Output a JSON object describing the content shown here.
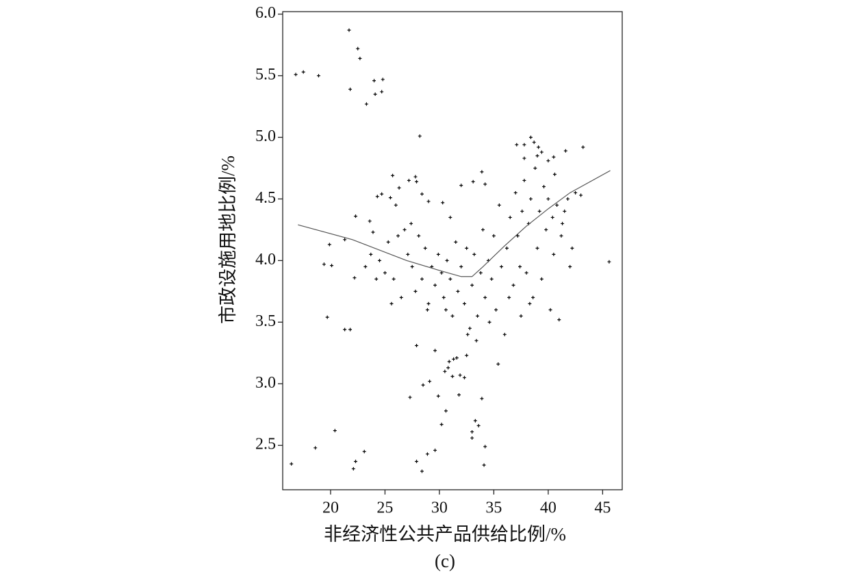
{
  "chart_data": {
    "type": "scatter",
    "x_label": "非经济性公共产品供给比例/%",
    "y_label": "市政设施用地比例/%",
    "caption": "(c)",
    "color": "#000000",
    "xlim": [
      15.6,
      46.8
    ],
    "ylim": [
      2.14,
      6.02
    ],
    "xticks": [
      20,
      25,
      30,
      35,
      40,
      45
    ],
    "yticks": [
      2.5,
      {
        "value": 3,
        "label": "3.0"
      },
      3.5,
      {
        "value": 4,
        "label": "4.0"
      },
      4.5,
      {
        "value": 5,
        "label": "5.0"
      },
      5.5,
      {
        "value": 6,
        "label": "6.0"
      }
    ],
    "points": {
      "x": [
        16.8,
        17.5,
        18.9,
        21.7,
        22.5,
        22.7,
        21.8,
        24.0,
        24.8,
        24.1,
        24.7,
        23.3,
        28.2,
        16.4,
        18.6,
        20.4,
        23.1,
        22.3,
        22.1,
        27.9,
        28.4,
        28.9,
        29.6,
        34.1,
        34.2,
        33.0,
        33.6,
        33.3,
        33.0,
        33.9,
        30.2,
        30.6,
        29.9,
        29.1,
        28.5,
        27.3,
        27.9,
        29.6,
        30.9,
        31.3,
        31.6,
        32.5,
        30.8,
        31.2,
        31.9,
        32.3,
        31.8,
        30.5,
        19.7,
        21.3,
        21.8,
        19.4,
        20.1,
        19.9,
        21.3,
        22.2,
        22.3,
        23.9,
        23.6,
        24.3,
        24.7,
        25.7,
        26.3,
        27.2,
        27.8,
        27.9,
        25.5,
        28.4,
        29.0,
        30.3,
        32.0,
        33.9,
        34.2,
        33.1,
        37.8,
        37.1,
        38.4,
        38.7,
        39.1,
        39.4,
        40.0,
        40.5,
        41.6,
        43.2,
        45.6,
        37.8,
        24.5,
        25.0,
        25.3,
        25.8,
        26.2,
        26.5,
        26.8,
        27.1,
        27.5,
        27.8,
        28.1,
        28.4,
        28.7,
        29.0,
        29.3,
        29.6,
        29.9,
        25.6,
        24.2,
        23.7,
        23.2,
        26.0,
        27.4,
        28.9,
        30.2,
        30.4,
        30.7,
        31.0,
        31.2,
        31.5,
        31.7,
        32.0,
        32.3,
        32.5,
        32.8,
        33.0,
        33.2,
        33.5,
        33.8,
        34.0,
        34.2,
        34.5,
        34.8,
        35.0,
        35.2,
        35.5,
        35.7,
        31.0,
        32.6,
        30.6,
        33.4,
        34.6,
        35.4,
        36.0,
        36.2,
        36.5,
        36.8,
        37.0,
        37.2,
        37.4,
        37.6,
        37.8,
        38.0,
        38.2,
        38.4,
        38.6,
        38.8,
        39.0,
        39.2,
        39.4,
        39.6,
        39.8,
        40.0,
        40.2,
        40.4,
        40.6,
        40.8,
        41.0,
        41.2,
        41.5,
        41.8,
        42.2,
        42.5,
        43.0,
        42.0,
        36.4,
        37.5,
        38.3,
        39.0,
        40.5,
        41.3
      ],
      "y": [
        5.51,
        5.53,
        5.5,
        5.87,
        5.72,
        5.64,
        5.39,
        5.46,
        5.47,
        5.35,
        5.37,
        5.27,
        5.01,
        2.35,
        2.48,
        2.62,
        2.45,
        2.37,
        2.31,
        2.37,
        2.29,
        2.43,
        2.46,
        2.34,
        2.49,
        2.56,
        2.66,
        2.7,
        2.61,
        2.88,
        2.67,
        2.78,
        2.9,
        3.02,
        2.99,
        2.89,
        3.31,
        3.27,
        3.18,
        3.2,
        3.21,
        3.23,
        3.13,
        3.06,
        3.07,
        3.05,
        2.91,
        3.1,
        3.54,
        3.44,
        3.44,
        3.97,
        3.96,
        4.13,
        4.17,
        3.86,
        4.36,
        4.23,
        4.32,
        4.52,
        4.54,
        4.69,
        4.59,
        4.65,
        4.68,
        4.64,
        4.51,
        4.54,
        4.48,
        4.47,
        4.61,
        4.72,
        4.62,
        4.64,
        4.83,
        4.94,
        5.0,
        4.96,
        4.92,
        4.88,
        4.81,
        4.84,
        4.89,
        4.92,
        3.99,
        4.94,
        4.0,
        3.9,
        4.15,
        3.85,
        4.2,
        3.7,
        4.25,
        4.05,
        3.95,
        3.75,
        4.2,
        3.85,
        4.1,
        3.65,
        3.95,
        3.8,
        4.05,
        3.65,
        3.85,
        4.05,
        3.95,
        4.45,
        4.3,
        3.6,
        3.9,
        3.7,
        4.0,
        3.85,
        3.55,
        4.15,
        3.75,
        3.95,
        3.65,
        4.1,
        3.45,
        3.8,
        4.05,
        3.55,
        3.9,
        4.25,
        3.7,
        4.0,
        3.85,
        4.2,
        3.6,
        4.45,
        3.95,
        4.35,
        3.4,
        3.6,
        3.35,
        3.5,
        3.16,
        3.4,
        4.1,
        4.35,
        3.8,
        4.55,
        4.2,
        3.95,
        4.4,
        4.65,
        3.9,
        4.3,
        4.5,
        3.7,
        4.75,
        4.1,
        4.4,
        3.85,
        4.6,
        4.25,
        4.5,
        3.6,
        4.35,
        4.7,
        4.45,
        3.52,
        4.2,
        4.4,
        4.5,
        4.1,
        4.55,
        4.53,
        3.95,
        3.7,
        3.55,
        3.65,
        4.85,
        4.05,
        4.3
      ]
    },
    "fit_line": {
      "x": [
        17,
        22,
        27,
        30,
        32,
        33,
        34,
        36,
        38,
        40,
        42,
        45.7
      ],
      "y": [
        4.29,
        4.17,
        4.0,
        3.92,
        3.87,
        3.87,
        3.95,
        4.12,
        4.28,
        4.42,
        4.55,
        4.73
      ]
    }
  }
}
